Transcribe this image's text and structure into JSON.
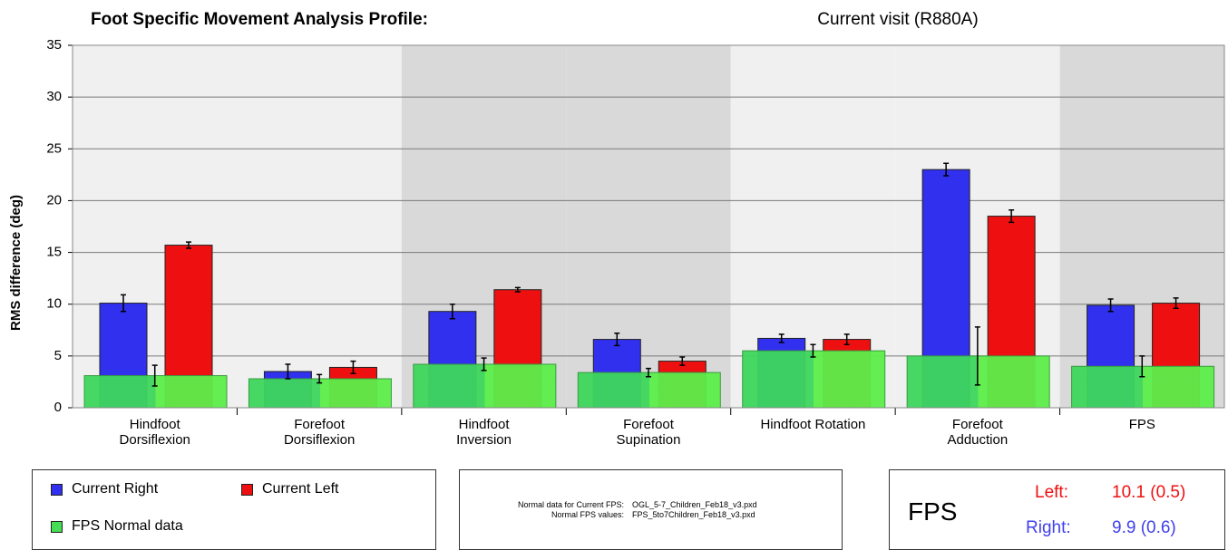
{
  "chart_data": {
    "type": "bar",
    "title": "Foot Specific Movement Analysis Profile:",
    "subtitle": "Current visit (R880A)",
    "y_label": "RMS difference (deg)",
    "categories": [
      "Hindfoot Dorsiflexion",
      "Forefoot Dorsiflexion",
      "Hindfoot Inversion",
      "Forefoot Supination",
      "Hindfoot Rotation",
      "Forefoot Adduction",
      "FPS"
    ],
    "series": [
      {
        "name": "Current Right",
        "color": "#3030ee",
        "values": [
          10.1,
          3.5,
          9.3,
          6.6,
          6.7,
          23.0,
          9.9
        ],
        "errors": [
          0.8,
          0.7,
          0.7,
          0.6,
          0.4,
          0.6,
          0.6
        ]
      },
      {
        "name": "Current Left",
        "color": "#ee1010",
        "values": [
          15.7,
          3.9,
          11.4,
          4.5,
          6.6,
          18.5,
          10.1
        ],
        "errors": [
          0.3,
          0.6,
          0.2,
          0.4,
          0.5,
          0.6,
          0.5
        ]
      },
      {
        "name": "FPS Normal data",
        "color": "#44dd55",
        "values": [
          3.1,
          2.8,
          4.2,
          3.4,
          5.5,
          5.0,
          4.0
        ],
        "errors": [
          1.0,
          0.4,
          0.6,
          0.4,
          0.6,
          2.8,
          1.0
        ]
      }
    ],
    "ylim": [
      0,
      35
    ],
    "yticks": [
      0,
      5,
      10,
      15,
      20,
      25,
      30,
      35
    ],
    "grid": true
  },
  "normal_info": {
    "rows": [
      [
        "Normal data for Current FPS:",
        "OGL_5-7_Children_Feb18_v3.pxd"
      ],
      [
        "Normal FPS values:",
        "FPS_5to7Children_Feb18_v3.pxd"
      ]
    ]
  },
  "fps_box": {
    "title": "FPS",
    "left_label": "Left:",
    "left_value": "10.1 (0.5)",
    "right_label": "Right:",
    "right_value": "9.9 (0.6)"
  }
}
